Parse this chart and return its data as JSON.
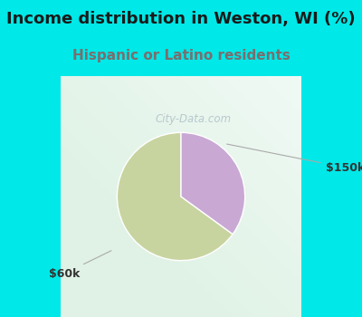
{
  "title": "Income distribution in Weston, WI (%)",
  "subtitle": "Hispanic or Latino residents",
  "title_fontsize": 13,
  "subtitle_fontsize": 11,
  "title_color": "#1a1a1a",
  "subtitle_color": "#7a6e6e",
  "slices": [
    65,
    35
  ],
  "slice_labels": [
    "$60k",
    "$150k"
  ],
  "slice_colors": [
    "#c8d4a0",
    "#c9a8d4"
  ],
  "background_cyan": "#00e8e8",
  "background_chart": "#ffffff",
  "chart_bg_gradient_from": "#e8f5ee",
  "chart_bg_gradient_to": "#f5fcfc",
  "watermark": "City-Data.com",
  "watermark_color": "#b0c0c8",
  "start_angle": 90,
  "label_fontsize": 9,
  "label_color": "#333333",
  "line_color": "#aaaaaa",
  "wedge_edge_color": "#ffffff",
  "wedge_linewidth": 1.0
}
